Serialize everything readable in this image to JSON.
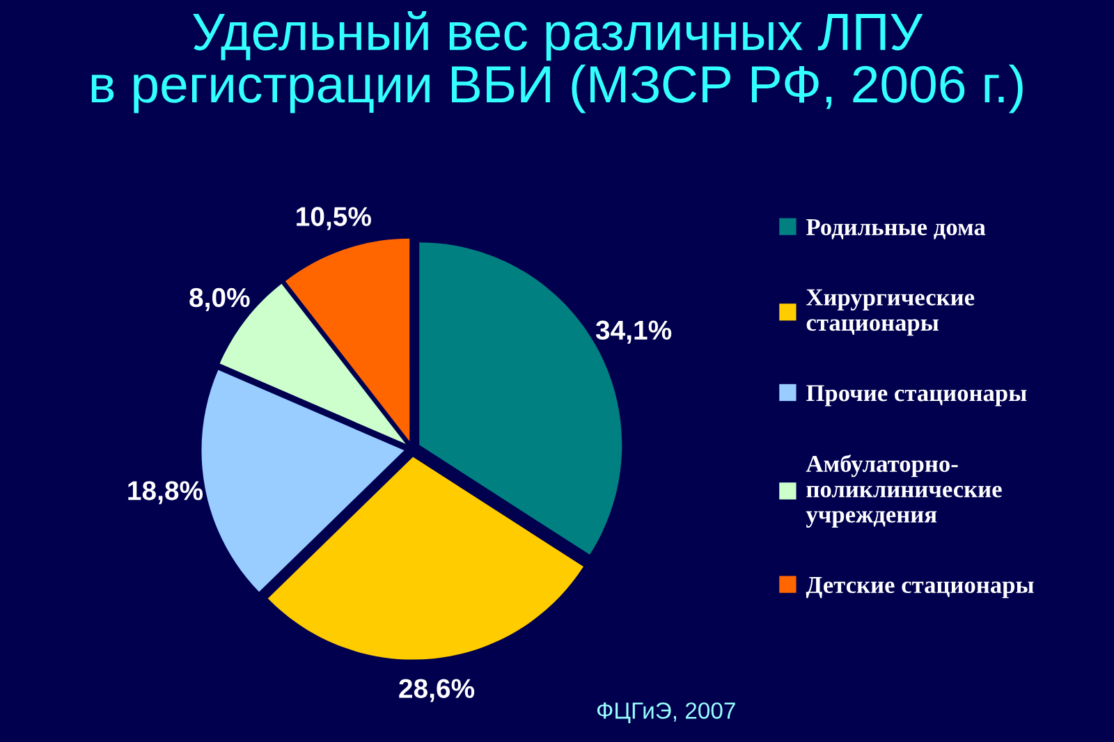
{
  "chart_data": {
    "type": "pie",
    "title": "Удельный вес различных ЛПУ\nв регистрации ВБИ (МЗСР РФ, 2006 г.)",
    "categories": [
      "Родильные дома",
      "Хирургические\nстационары",
      "Прочие стационары",
      "Амбулаторно-\nполиклинические\nучреждения",
      "Детские стационары"
    ],
    "values": [
      34.1,
      28.6,
      18.8,
      8.0,
      10.5
    ],
    "value_labels": [
      "34,1%",
      "28,6%",
      "18,8%",
      "8,0%",
      "10,5%"
    ],
    "colors": [
      "#008080",
      "#ffcc00",
      "#99ccff",
      "#ccffcc",
      "#ff6600"
    ],
    "legend": "right",
    "annotations": [
      "ФЦГиЭ, 2007"
    ]
  }
}
